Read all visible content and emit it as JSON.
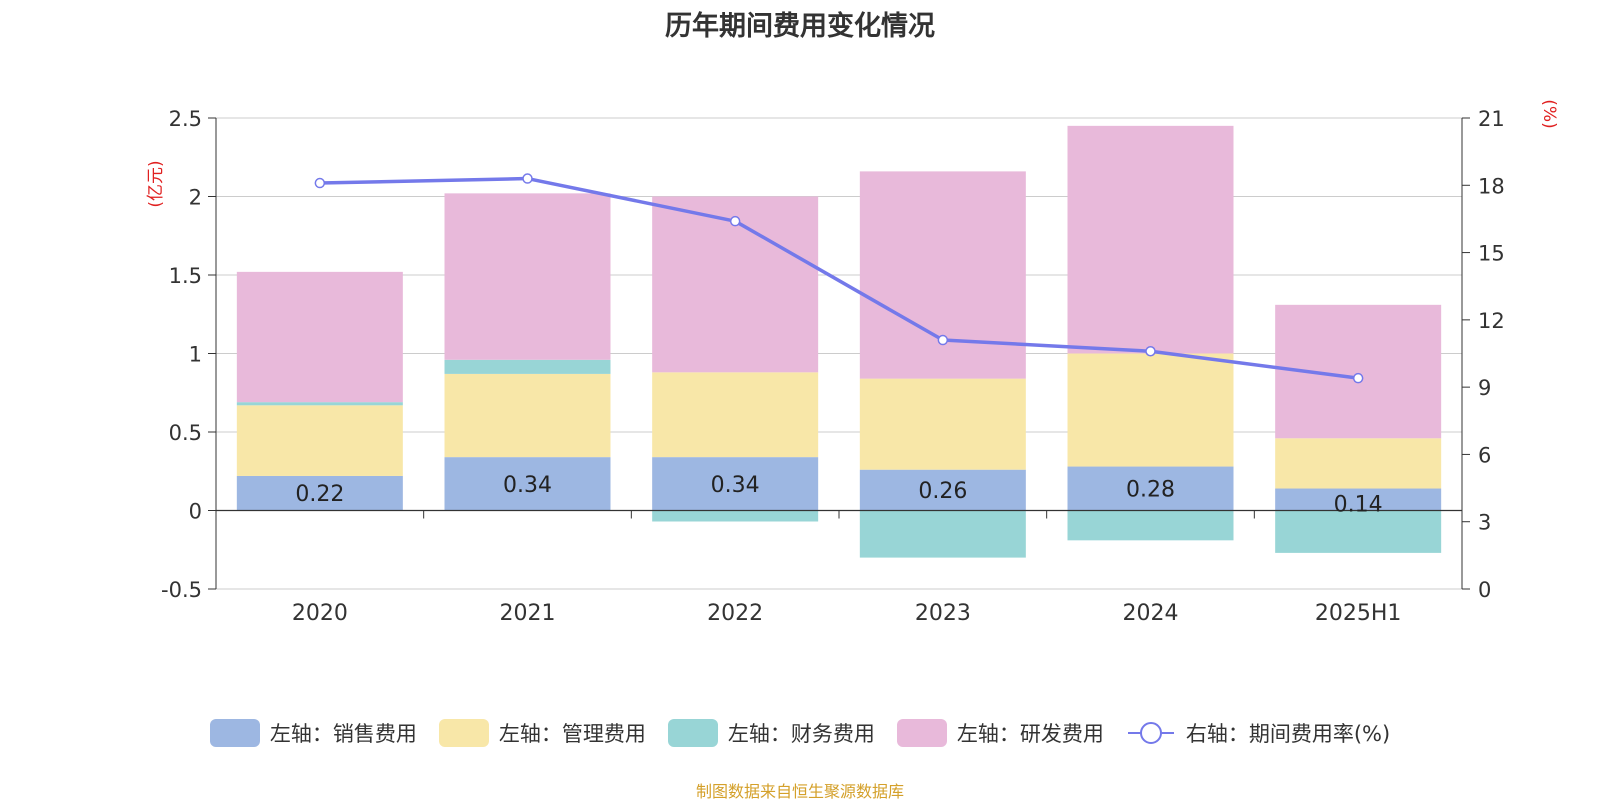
{
  "title": "历年期间费用变化情况",
  "source": "制图数据来自恒生聚源数据库",
  "chart_data": {
    "type": "bar",
    "stacked": true,
    "categories": [
      "2020",
      "2021",
      "2022",
      "2023",
      "2024",
      "2025H1"
    ],
    "left_axis": {
      "label": "(亿元)",
      "range": [
        -0.5,
        2.5
      ],
      "ticks": [
        "-0.5",
        "0",
        "0.5",
        "1",
        "1.5",
        "2",
        "2.5"
      ]
    },
    "right_axis": {
      "label": "(%)",
      "range": [
        0,
        21
      ],
      "ticks": [
        "0",
        "3",
        "6",
        "9",
        "12",
        "15",
        "18",
        "21"
      ]
    },
    "series": [
      {
        "name": "左轴：销售费用",
        "type": "bar",
        "color": "#9db7e2",
        "values": [
          0.22,
          0.34,
          0.34,
          0.26,
          0.28,
          0.14
        ],
        "data_labels": [
          "0.22",
          "0.34",
          "0.34",
          "0.26",
          "0.28",
          "0.14"
        ]
      },
      {
        "name": "左轴：管理费用",
        "type": "bar",
        "color": "#f8e7a8",
        "values": [
          0.45,
          0.53,
          0.54,
          0.58,
          0.72,
          0.32
        ]
      },
      {
        "name": "左轴：财务费用",
        "type": "bar",
        "color": "#98d5d6",
        "values": [
          0.02,
          0.09,
          -0.07,
          -0.3,
          -0.19,
          -0.27
        ]
      },
      {
        "name": "左轴：研发费用",
        "type": "bar",
        "color": "#e8b9da",
        "values": [
          0.83,
          1.06,
          1.12,
          1.32,
          1.45,
          0.85
        ]
      },
      {
        "name": "右轴：期间费用率(%)",
        "type": "line",
        "axis": "right",
        "color": "#7479ea",
        "values": [
          18.1,
          18.3,
          16.4,
          11.1,
          10.6,
          9.4
        ]
      }
    ],
    "grid": true,
    "legend_position": "bottom"
  }
}
